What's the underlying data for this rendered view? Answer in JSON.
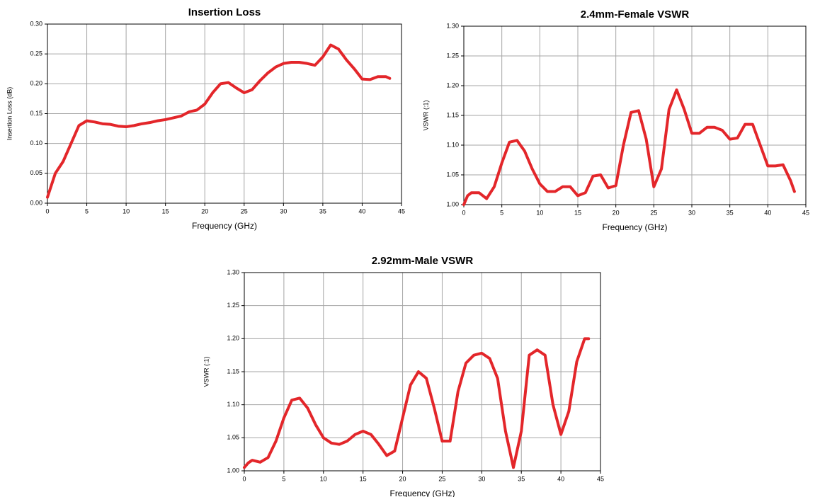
{
  "chart_data": [
    {
      "type": "line",
      "title": "Insertion Loss",
      "xlabel": "Frequency (GHz)",
      "ylabel": "Insertion Loss (dB)",
      "color": "#e3262a",
      "grid": true,
      "x": [
        0,
        0.5,
        1,
        2,
        3,
        4,
        5,
        6,
        7,
        8,
        9,
        10,
        11,
        12,
        13,
        14,
        15,
        16,
        17,
        18,
        19,
        20,
        21,
        22,
        23,
        24,
        25,
        26,
        27,
        28,
        29,
        30,
        31,
        32,
        33,
        34,
        35,
        36,
        37,
        38,
        39,
        40,
        41,
        42,
        43,
        43.5
      ],
      "values": [
        0.01,
        0.03,
        0.05,
        0.07,
        0.1,
        0.13,
        0.138,
        0.136,
        0.133,
        0.132,
        0.129,
        0.128,
        0.13,
        0.133,
        0.135,
        0.138,
        0.14,
        0.143,
        0.146,
        0.153,
        0.156,
        0.166,
        0.185,
        0.2,
        0.202,
        0.193,
        0.185,
        0.19,
        0.205,
        0.218,
        0.228,
        0.234,
        0.236,
        0.236,
        0.234,
        0.231,
        0.245,
        0.265,
        0.258,
        0.24,
        0.225,
        0.208,
        0.207,
        0.212,
        0.212,
        0.209
      ],
      "xlim": [
        0,
        45
      ],
      "xticks": [
        0,
        5,
        10,
        15,
        20,
        25,
        30,
        35,
        40,
        45
      ],
      "ylim": [
        0,
        0.3
      ],
      "yticks": [
        {
          "value": 0,
          "label": "0.00"
        },
        0.05,
        {
          "value": 0.1,
          "label": "0.10"
        },
        0.15,
        {
          "value": 0.2,
          "label": "0.20"
        },
        0.25,
        {
          "value": 0.3,
          "label": "0.30"
        }
      ]
    },
    {
      "type": "line",
      "title": "2.4mm-Female VSWR",
      "xlabel": "Frequency (GHz)",
      "ylabel": "VSWR (:1)",
      "color": "#e3262a",
      "grid": true,
      "x": [
        0,
        0.5,
        1,
        2,
        3,
        4,
        5,
        6,
        7,
        8,
        9,
        10,
        11,
        12,
        13,
        14,
        15,
        16,
        17,
        18,
        19,
        20,
        21,
        22,
        23,
        24,
        25,
        26,
        27,
        28,
        29,
        30,
        31,
        32,
        33,
        34,
        35,
        36,
        37,
        38,
        39,
        40,
        41,
        42,
        43,
        43.5
      ],
      "values": [
        1.0,
        1.015,
        1.02,
        1.02,
        1.01,
        1.03,
        1.07,
        1.105,
        1.108,
        1.09,
        1.06,
        1.035,
        1.022,
        1.022,
        1.03,
        1.03,
        1.015,
        1.02,
        1.048,
        1.05,
        1.028,
        1.032,
        1.1,
        1.155,
        1.158,
        1.11,
        1.03,
        1.06,
        1.16,
        1.193,
        1.16,
        1.12,
        1.12,
        1.13,
        1.13,
        1.125,
        1.11,
        1.112,
        1.135,
        1.135,
        1.1,
        1.065,
        1.065,
        1.067,
        1.04,
        1.022
      ],
      "xlim": [
        0,
        45
      ],
      "xticks": [
        0,
        5,
        10,
        15,
        20,
        25,
        30,
        35,
        40,
        45
      ],
      "ylim": [
        1,
        1.3
      ],
      "yticks": [
        {
          "value": 1,
          "label": "1.00"
        },
        1.05,
        {
          "value": 1.1,
          "label": "1.10"
        },
        1.15,
        {
          "value": 1.2,
          "label": "1.20"
        },
        1.25,
        {
          "value": 1.3,
          "label": "1.30"
        }
      ]
    },
    {
      "type": "line",
      "title": "2.92mm-Male VSWR",
      "xlabel": "Frequency (GHz)",
      "ylabel": "VSWR (:1)",
      "color": "#e3262a",
      "grid": true,
      "x": [
        0,
        0.5,
        1,
        2,
        3,
        4,
        5,
        6,
        7,
        8,
        9,
        10,
        11,
        12,
        13,
        14,
        15,
        16,
        17,
        18,
        19,
        20,
        21,
        22,
        23,
        24,
        25,
        26,
        27,
        28,
        29,
        30,
        31,
        32,
        33,
        34,
        35,
        36,
        37,
        38,
        39,
        40,
        41,
        42,
        43,
        43.5
      ],
      "values": [
        1.005,
        1.012,
        1.016,
        1.013,
        1.02,
        1.045,
        1.08,
        1.107,
        1.11,
        1.095,
        1.07,
        1.05,
        1.042,
        1.04,
        1.045,
        1.055,
        1.06,
        1.055,
        1.04,
        1.023,
        1.03,
        1.08,
        1.13,
        1.15,
        1.14,
        1.095,
        1.045,
        1.045,
        1.12,
        1.163,
        1.175,
        1.178,
        1.17,
        1.14,
        1.06,
        1.005,
        1.06,
        1.175,
        1.183,
        1.175,
        1.1,
        1.055,
        1.09,
        1.165,
        1.2,
        1.2
      ],
      "xlim": [
        0,
        45
      ],
      "xticks": [
        0,
        5,
        10,
        15,
        20,
        25,
        30,
        35,
        40,
        45
      ],
      "ylim": [
        1,
        1.3
      ],
      "yticks": [
        {
          "value": 1,
          "label": "1.00"
        },
        1.05,
        {
          "value": 1.1,
          "label": "1.10"
        },
        1.15,
        {
          "value": 1.2,
          "label": "1.20"
        },
        1.25,
        {
          "value": 1.3,
          "label": "1.30"
        }
      ]
    }
  ]
}
